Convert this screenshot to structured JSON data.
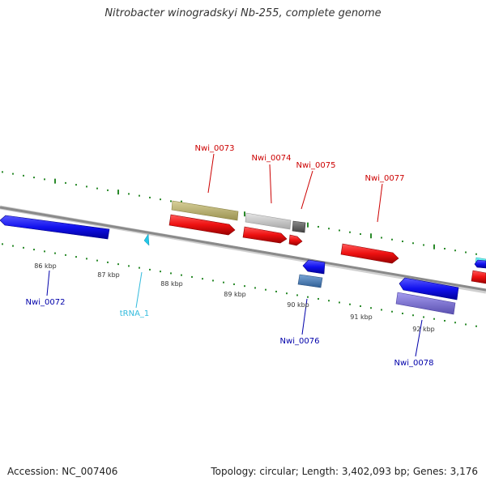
{
  "header": {
    "title": "Nitrobacter winogradskyi Nb-255, complete genome"
  },
  "footer": {
    "accession": "Accession: NC_007406",
    "stats": "Topology: circular; Length: 3,402,093 bp; Genes: 3,176"
  },
  "scale": {
    "ticks": [
      {
        "label": "86 kbp"
      },
      {
        "label": "87 kbp"
      },
      {
        "label": "88 kbp"
      },
      {
        "label": "89 kbp"
      },
      {
        "label": "90 kbp"
      },
      {
        "label": "91 kbp"
      },
      {
        "label": "92 kbp"
      }
    ]
  },
  "genes": {
    "upper": [
      {
        "name": "Nwi_0073",
        "color": "#cc0000"
      },
      {
        "name": "Nwi_0074",
        "color": "#cc0000"
      },
      {
        "name": "Nwi_0075",
        "color": "#cc0000"
      },
      {
        "name": "Nwi_0077",
        "color": "#cc0000"
      }
    ],
    "lower": [
      {
        "name": "Nwi_0072",
        "color": "#0000aa"
      },
      {
        "name": "tRNA_1",
        "color": "#33bbdd"
      },
      {
        "name": "Nwi_0076",
        "color": "#0000aa"
      },
      {
        "name": "Nwi_0078",
        "color": "#0000aa"
      }
    ]
  },
  "colors": {
    "forward_gene": "#ee1111",
    "reverse_gene": "#1111ee",
    "backbone": "#888888",
    "dots": "#2a8a2a",
    "cog_olive": "#b8b070",
    "cog_lightgray": "#c8c8c8",
    "cog_darkgray": "#666666",
    "cog_steelblue": "#4f7fb5",
    "cog_slate": "#7b70cc",
    "cog_cyan": "#22dddd"
  }
}
